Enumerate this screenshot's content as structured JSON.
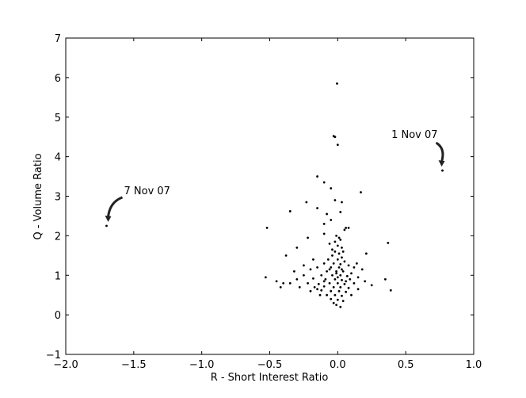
{
  "chart_data": {
    "type": "scatter",
    "x_label": "R - Short Interest Ratio",
    "y_label": "Q - Volume Ratio",
    "color": "#000000",
    "xlim": [
      -2.0,
      1.0
    ],
    "ylim": [
      -1,
      7
    ],
    "xticks": [
      {
        "value": -2.0,
        "label": "−2.0"
      },
      {
        "value": -1.5,
        "label": "−1.5"
      },
      {
        "value": -1.0,
        "label": "−1.0"
      },
      {
        "value": -0.5,
        "label": "−0.5"
      },
      {
        "value": 0.0,
        "label": "0.0"
      },
      {
        "value": 0.5,
        "label": "0.5"
      },
      {
        "value": 1.0,
        "label": "1.0"
      }
    ],
    "yticks": [
      {
        "value": -1,
        "label": "−1"
      },
      0,
      1,
      2,
      3,
      4,
      5,
      6,
      7
    ],
    "annotations": [
      {
        "text": "7 Nov 07",
        "x": -1.7,
        "y": 2.25
      },
      {
        "text": "1 Nov 07",
        "x": 0.77,
        "y": 3.65
      }
    ],
    "x": [
      -1.7,
      0.77,
      -0.005,
      -0.03,
      -0.02,
      0.0,
      -0.15,
      -0.1,
      -0.05,
      0.17,
      -0.35,
      -0.23,
      -0.52,
      -0.15,
      -0.08,
      -0.02,
      0.03,
      0.02,
      -0.05,
      0.06,
      0.08,
      0.05,
      -0.1,
      0.37,
      -0.22,
      -0.1,
      -0.01,
      0.02,
      -0.06,
      0.0,
      0.03,
      0.21,
      -0.38,
      -0.3,
      0.35,
      0.39,
      -0.53,
      -0.45,
      -0.42,
      -0.4,
      -0.02,
      0.01,
      -0.04,
      0.03,
      -0.07,
      0.0,
      0.05,
      -0.1,
      -0.03,
      0.02,
      0.08,
      -0.15,
      -0.05,
      0.01,
      0.12,
      -0.2,
      -0.08,
      -0.01,
      0.04,
      0.1,
      -0.25,
      -0.12,
      -0.04,
      0.02,
      0.07,
      0.15,
      -0.3,
      -0.18,
      -0.09,
      -0.02,
      0.03,
      0.09,
      0.2,
      -0.35,
      -0.22,
      -0.14,
      -0.06,
      0.0,
      0.05,
      0.12,
      -0.28,
      -0.17,
      -0.1,
      -0.03,
      0.02,
      0.08,
      -0.2,
      -0.12,
      -0.05,
      0.01,
      0.06,
      -0.08,
      -0.02,
      0.03,
      -0.05,
      0.0,
      0.04,
      -0.03,
      -0.01,
      0.02,
      -0.13,
      0.1,
      -0.25,
      0.14,
      -0.02,
      0.01,
      -0.04,
      0.04,
      -0.18,
      0.18,
      0.25,
      -0.32,
      -0.01,
      0.0,
      -0.06,
      0.03,
      -0.1,
      0.06,
      -0.15,
      0.15
    ],
    "values": [
      2.25,
      3.65,
      5.85,
      4.52,
      4.5,
      4.3,
      3.5,
      3.35,
      3.2,
      3.1,
      2.62,
      2.85,
      2.2,
      2.7,
      2.55,
      2.9,
      2.85,
      2.6,
      2.4,
      2.2,
      2.2,
      2.15,
      2.3,
      1.82,
      1.95,
      2.05,
      2.0,
      1.9,
      1.8,
      1.75,
      1.7,
      1.55,
      1.5,
      1.7,
      0.9,
      0.62,
      0.95,
      0.85,
      0.7,
      0.8,
      1.6,
      1.55,
      1.5,
      1.45,
      1.4,
      1.4,
      1.35,
      1.3,
      1.3,
      1.28,
      1.25,
      1.2,
      1.2,
      1.2,
      1.2,
      1.15,
      1.1,
      1.1,
      1.1,
      1.05,
      1.0,
      1.0,
      1.0,
      1.0,
      0.98,
      0.95,
      0.9,
      0.92,
      0.9,
      0.9,
      0.88,
      0.9,
      0.85,
      0.8,
      0.8,
      0.78,
      0.8,
      0.8,
      0.78,
      0.8,
      0.7,
      0.7,
      0.72,
      0.7,
      0.7,
      0.68,
      0.6,
      0.62,
      0.6,
      0.6,
      0.58,
      0.5,
      0.5,
      0.48,
      0.4,
      0.38,
      0.35,
      0.3,
      0.25,
      0.2,
      0.5,
      0.5,
      1.25,
      1.3,
      1.85,
      1.95,
      1.65,
      1.6,
      1.4,
      1.15,
      0.75,
      1.1,
      1.05,
      0.95,
      1.15,
      1.15,
      0.85,
      0.85,
      0.65,
      0.65
    ]
  }
}
